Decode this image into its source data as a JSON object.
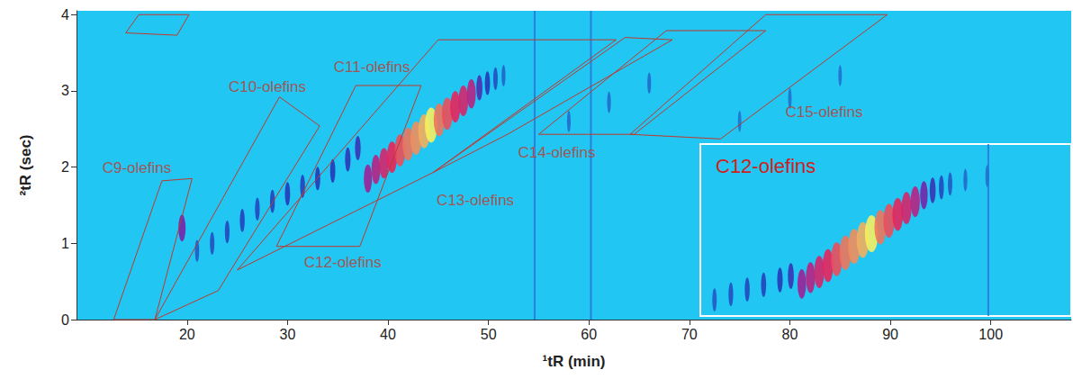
{
  "chart_data": [
    {
      "type": "scatter",
      "x_label": "¹tR (min)",
      "y_label": "²tR (sec)",
      "xlim": [
        9,
        108
      ],
      "ylim": [
        0,
        4.05
      ],
      "xticks": [
        20,
        30,
        40,
        50,
        60,
        70,
        80,
        90,
        100
      ],
      "yticks": [
        0,
        1,
        2,
        3,
        4
      ],
      "grid": false,
      "intensity_range": [
        0,
        100
      ],
      "peaks": {
        "x": [
          19.5,
          21.0,
          22.5,
          24.0,
          25.5,
          27.0,
          28.5,
          30.0,
          31.5,
          33.0,
          34.5,
          36.0,
          37.0,
          38.0,
          38.8,
          39.6,
          40.4,
          41.2,
          42.0,
          42.8,
          43.6,
          44.3,
          45.1,
          45.9,
          46.7,
          47.5,
          48.3,
          49.1,
          49.9,
          50.7,
          51.5,
          58.0,
          62.0,
          66.0,
          75.0,
          80.0,
          85.0
        ],
        "y": [
          1.2,
          0.9,
          1.0,
          1.15,
          1.3,
          1.45,
          1.55,
          1.65,
          1.75,
          1.85,
          1.95,
          2.1,
          2.25,
          1.85,
          1.97,
          2.05,
          2.13,
          2.22,
          2.3,
          2.38,
          2.47,
          2.55,
          2.62,
          2.7,
          2.79,
          2.87,
          2.96,
          3.04,
          3.1,
          3.16,
          3.2,
          2.6,
          2.85,
          3.1,
          2.6,
          2.9,
          3.2
        ],
        "intensity": [
          45,
          15,
          18,
          20,
          22,
          20,
          22,
          25,
          22,
          25,
          25,
          28,
          30,
          55,
          62,
          70,
          75,
          80,
          85,
          88,
          92,
          100,
          85,
          80,
          75,
          70,
          62,
          35,
          25,
          18,
          12,
          10,
          10,
          10,
          8,
          8,
          8
        ]
      },
      "vertical_streaks": [
        54.6,
        60.2
      ],
      "regions": [
        {
          "label": "C9-olefins",
          "x_vertices": [
            12.7,
            17.5,
            20.5,
            16.8
          ],
          "y_vertices": [
            0,
            1.82,
            1.85,
            0
          ],
          "label_x": 15.0,
          "label_y": 1.99
        },
        {
          "label": "C10-olefins",
          "x_vertices": [
            16.8,
            29.2,
            33.2,
            23.1
          ],
          "y_vertices": [
            0,
            2.92,
            2.54,
            0.38
          ],
          "label_x": 28.0,
          "label_y": 3.05
        },
        {
          "label": "C11-olefins",
          "x_vertices": [
            25.0,
            45.0,
            62.7,
            44.5
          ],
          "y_vertices": [
            0.65,
            3.67,
            3.67,
            1.93
          ],
          "label_x": 38.4,
          "label_y": 3.31
        },
        {
          "label": "C12-olefins",
          "x_vertices": [
            28.9,
            36.8,
            43.3,
            37.2
          ],
          "y_vertices": [
            0.96,
            3.07,
            3.07,
            0.96
          ],
          "label_x": 35.5,
          "label_y": 0.75
        },
        {
          "label": "C13-olefins",
          "x_vertices": [
            44.5,
            63.6,
            68.3,
            51.9
          ],
          "y_vertices": [
            1.93,
            3.7,
            3.67,
            2.43
          ],
          "label_x": 48.7,
          "label_y": 1.57
        },
        {
          "label": "C14-olefins",
          "x_vertices": [
            55.0,
            67.7,
            77.6,
            64.5
          ],
          "y_vertices": [
            2.43,
            3.79,
            3.79,
            2.43
          ],
          "label_x": 56.8,
          "label_y": 2.19
        },
        {
          "label": "C15-olefins",
          "x_vertices": [
            64.1,
            77.6,
            89.7,
            73.1
          ],
          "y_vertices": [
            2.43,
            4.0,
            4.0,
            2.37
          ],
          "label_x": 83.4,
          "label_y": 2.72
        },
        {
          "label": null,
          "x_vertices": [
            13.9,
            15.2,
            20.2,
            19.0
          ],
          "y_vertices": [
            3.76,
            4.0,
            4.0,
            3.73
          ],
          "label_x": null,
          "label_y": null
        }
      ]
    },
    {
      "type": "scatter",
      "title": "C12-olefins",
      "xlim": [
        28.2,
        62.2
      ],
      "ylim": [
        1.45,
        3.6
      ],
      "tick_labels": false,
      "grid": false,
      "intensity_range": [
        0,
        100
      ],
      "peaks": {
        "x": [
          29.5,
          31.0,
          32.5,
          34.0,
          35.5,
          36.5,
          37.5,
          38.3,
          39.1,
          39.9,
          40.7,
          41.5,
          42.3,
          43.1,
          43.9,
          44.7,
          45.5,
          46.3,
          47.1,
          47.9,
          48.7,
          49.5,
          50.3,
          51.1,
          52.5,
          54.5
        ],
        "y": [
          1.65,
          1.72,
          1.78,
          1.84,
          1.9,
          1.95,
          1.85,
          1.93,
          2.0,
          2.08,
          2.16,
          2.24,
          2.32,
          2.4,
          2.48,
          2.56,
          2.64,
          2.72,
          2.8,
          2.88,
          2.96,
          3.02,
          3.06,
          3.1,
          3.15,
          3.2
        ],
        "intensity": [
          15,
          18,
          20,
          22,
          25,
          30,
          55,
          62,
          70,
          75,
          80,
          85,
          88,
          92,
          100,
          85,
          80,
          75,
          70,
          62,
          45,
          30,
          20,
          15,
          10,
          8
        ]
      },
      "vertical_streaks": [
        54.6
      ]
    }
  ]
}
